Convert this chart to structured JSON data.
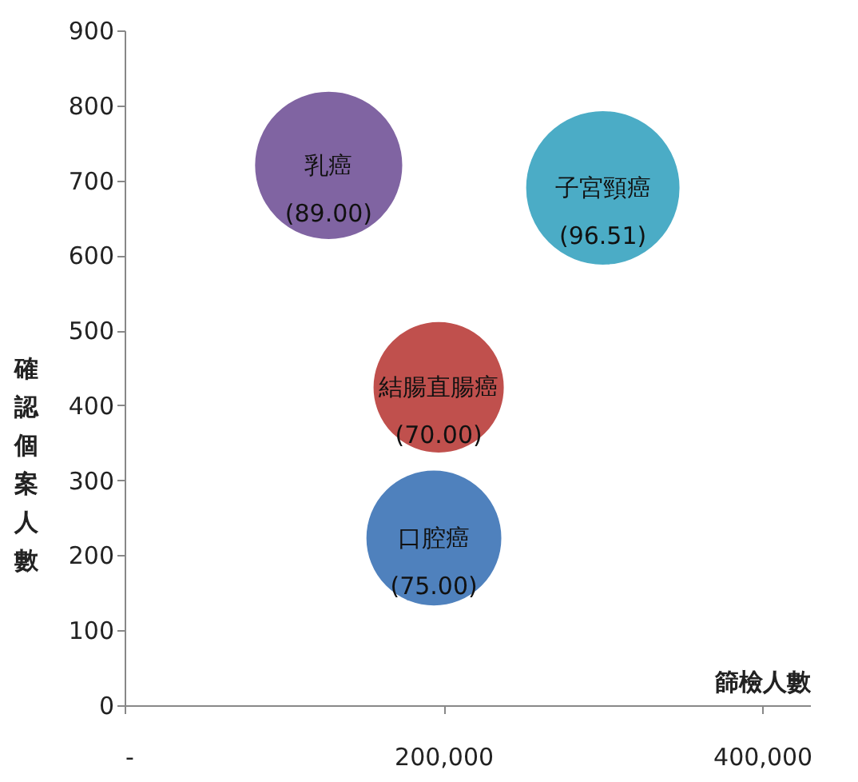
{
  "chart_data": {
    "type": "bubble",
    "xlabel": "篩檢人數",
    "ylabel": "確認個案人數",
    "series": [
      {
        "name": "乳癌",
        "color": "#8064a2",
        "x": [
          128000
        ],
        "values": [
          720
        ],
        "sizes": [
          89.0
        ],
        "value_labels": [
          "(89.00)"
        ]
      },
      {
        "name": "子宮頸癌",
        "color": "#4bacc6",
        "x": [
          300000
        ],
        "values": [
          690
        ],
        "sizes": [
          96.51
        ],
        "value_labels": [
          "(96.51)"
        ]
      },
      {
        "name": "結腸直腸癌",
        "color": "#c0504d",
        "x": [
          197000
        ],
        "values": [
          424
        ],
        "sizes": [
          70.0
        ],
        "value_labels": [
          "(70.00)"
        ]
      },
      {
        "name": "口腔癌",
        "color": "#4f81bd",
        "x": [
          194000
        ],
        "values": [
          223
        ],
        "sizes": [
          75.0
        ],
        "value_labels": [
          "(75.00)"
        ]
      }
    ],
    "xlim": [
      0,
      430000
    ],
    "xticks": [
      {
        "value": 0,
        "label": "-"
      },
      {
        "value": 200000,
        "label": "200,000"
      },
      {
        "value": 400000,
        "label": "400,000"
      }
    ],
    "ylim": [
      0,
      900
    ],
    "yticks": [
      0,
      100,
      200,
      300,
      400,
      500,
      600,
      700,
      800,
      900
    ],
    "grid": false
  }
}
